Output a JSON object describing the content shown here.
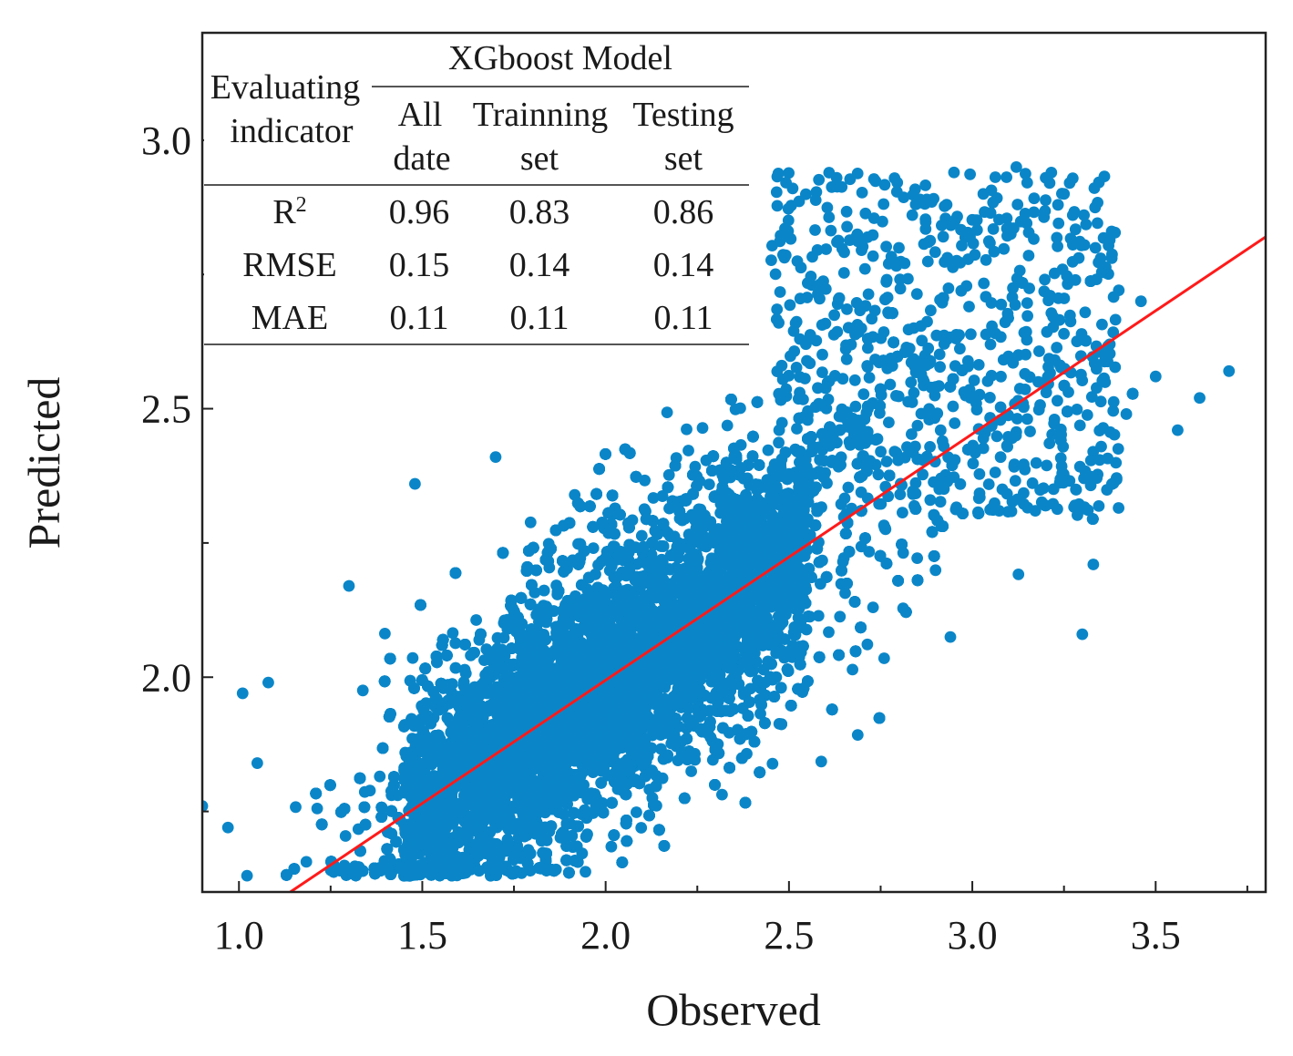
{
  "chart_data": {
    "type": "scatter",
    "xlabel": "Observed",
    "ylabel": "Predicted",
    "xlim": [
      0.9,
      3.8
    ],
    "ylim": [
      1.6,
      3.2
    ],
    "xticks": [
      1.0,
      1.5,
      2.0,
      2.5,
      3.0,
      3.5
    ],
    "xtick_labels": [
      "1.0",
      "1.5",
      "2.0",
      "2.5",
      "3.0",
      "3.5"
    ],
    "yticks": [
      2.0,
      2.5,
      3.0
    ],
    "ytick_labels": [
      "2.0",
      "2.5",
      "3.0"
    ],
    "grid": false,
    "point_color": "#0a86c8",
    "fit_line_color": "#ff1a1a",
    "fit_line": {
      "x": [
        1.14,
        3.8
      ],
      "y": [
        1.6,
        2.82
      ]
    },
    "point_cloud_description_values": {
      "n_points_approx": 20000,
      "x_core_range": [
        1.2,
        2.8
      ],
      "y_core_range": [
        1.63,
        2.55
      ],
      "x_outer_range": [
        0.9,
        3.7
      ],
      "y_outer_range": [
        1.63,
        2.95
      ]
    },
    "outlier_points": [
      {
        "x": 0.9,
        "y": 1.76
      },
      {
        "x": 1.01,
        "y": 1.97
      },
      {
        "x": 1.08,
        "y": 1.99
      },
      {
        "x": 0.97,
        "y": 1.72
      },
      {
        "x": 1.05,
        "y": 1.84
      },
      {
        "x": 1.3,
        "y": 2.17
      },
      {
        "x": 1.48,
        "y": 2.36
      },
      {
        "x": 1.7,
        "y": 2.41
      },
      {
        "x": 2.63,
        "y": 2.93
      },
      {
        "x": 2.95,
        "y": 2.94
      },
      {
        "x": 3.12,
        "y": 2.95
      },
      {
        "x": 3.2,
        "y": 2.93
      },
      {
        "x": 3.7,
        "y": 2.57
      },
      {
        "x": 3.56,
        "y": 2.46
      },
      {
        "x": 3.5,
        "y": 2.56
      },
      {
        "x": 3.38,
        "y": 2.83
      },
      {
        "x": 3.46,
        "y": 2.7
      },
      {
        "x": 3.3,
        "y": 2.08
      },
      {
        "x": 3.28,
        "y": 2.32
      },
      {
        "x": 3.33,
        "y": 2.21
      },
      {
        "x": 3.62,
        "y": 2.52
      },
      {
        "x": 3.42,
        "y": 2.49
      },
      {
        "x": 3.18,
        "y": 2.55
      },
      {
        "x": 2.93,
        "y": 2.88
      },
      {
        "x": 3.03,
        "y": 2.9
      },
      {
        "x": 3.25,
        "y": 2.9
      },
      {
        "x": 3.35,
        "y": 2.78
      }
    ]
  },
  "metrics_table": {
    "header_indicator_line1": "Evaluating",
    "header_indicator_line2": "indicator",
    "header_model": "XGboost Model",
    "col1_line1": "All",
    "col1_line2": "date",
    "col2_line1": "Trainning",
    "col2_line2": "set",
    "col3_line1": "Testing",
    "col3_line2": "set",
    "rows": [
      {
        "label": "R",
        "sup": "2",
        "all": "0.96",
        "train": "0.83",
        "test": "0.86"
      },
      {
        "label": "RMSE",
        "sup": "",
        "all": "0.15",
        "train": "0.14",
        "test": "0.14"
      },
      {
        "label": "MAE",
        "sup": "",
        "all": "0.11",
        "train": "0.11",
        "test": "0.11"
      }
    ]
  }
}
